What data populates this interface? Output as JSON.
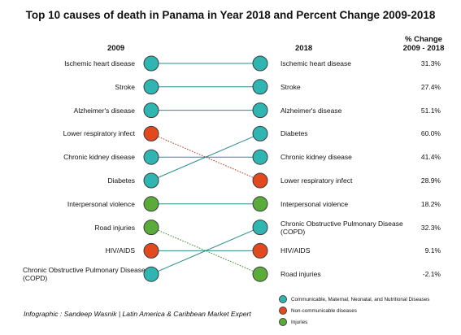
{
  "title": "Top 10 causes of death in Panama in Year 2018 and Percent Change 2009-2018",
  "headers": {
    "left": "2009",
    "right": "2018",
    "change_line1": "% Change",
    "change_line2": "2009 - 2018"
  },
  "colors": {
    "communicable": "#2fb5b2",
    "noncommunicable": "#e2491e",
    "injuries": "#5bab3a",
    "outline": "#3d3d3d"
  },
  "left_items": [
    {
      "label": "Ischemic heart disease",
      "category": "communicable"
    },
    {
      "label": "Stroke",
      "category": "communicable"
    },
    {
      "label": "Alzheimer's disease",
      "category": "communicable"
    },
    {
      "label": "Lower respiratory infect",
      "category": "noncommunicable"
    },
    {
      "label": "Chronic kidney disease",
      "category": "communicable"
    },
    {
      "label": "Diabetes",
      "category": "communicable"
    },
    {
      "label": "Interpersonal violence",
      "category": "injuries"
    },
    {
      "label": "Road injuries",
      "category": "injuries"
    },
    {
      "label": "HIV/AIDS",
      "category": "noncommunicable"
    },
    {
      "label": "Chronic Obstructive Pulmonary Disease",
      "label2": "(COPD)",
      "category": "communicable"
    }
  ],
  "right_items": [
    {
      "label": "Ischemic heart disease",
      "change": "31.3%",
      "category": "communicable"
    },
    {
      "label": "Stroke",
      "change": "27.4%",
      "category": "communicable"
    },
    {
      "label": "Alzheimer's disease",
      "change": "51.1%",
      "category": "communicable"
    },
    {
      "label": "Diabetes",
      "change": "60.0%",
      "category": "communicable"
    },
    {
      "label": "Chronic kidney disease",
      "change": "41.4%",
      "category": "communicable"
    },
    {
      "label": "Lower respiratory infect",
      "change": "28.9%",
      "category": "noncommunicable"
    },
    {
      "label": "Interpersonal violence",
      "change": "18.2%",
      "category": "injuries"
    },
    {
      "label": "Chronic Obstructive Pulmonary Disease",
      "label2": "(COPD)",
      "change": "32.3%",
      "category": "communicable"
    },
    {
      "label": "HIV/AIDS",
      "change": "9.1%",
      "category": "noncommunicable"
    },
    {
      "label": "Road injuries",
      "change": "-2.1%",
      "category": "injuries"
    }
  ],
  "connections": [
    {
      "from": 0,
      "to": 0,
      "style": "solid"
    },
    {
      "from": 1,
      "to": 1,
      "style": "solid"
    },
    {
      "from": 2,
      "to": 2,
      "style": "solid"
    },
    {
      "from": 3,
      "to": 5,
      "style": "dotted"
    },
    {
      "from": 4,
      "to": 4,
      "style": "solid"
    },
    {
      "from": 5,
      "to": 3,
      "style": "solid"
    },
    {
      "from": 6,
      "to": 6,
      "style": "solid"
    },
    {
      "from": 7,
      "to": 9,
      "style": "dotted"
    },
    {
      "from": 8,
      "to": 8,
      "style": "solid"
    },
    {
      "from": 9,
      "to": 7,
      "style": "solid"
    }
  ],
  "legend": [
    {
      "label": "Communicable, Maternal, Neonatal, and Nutritional Diseases",
      "category": "communicable"
    },
    {
      "label": "Non-communicable diseases",
      "category": "noncommunicable"
    },
    {
      "label": "Injuries",
      "category": "injuries"
    }
  ],
  "credit": "Infographic : Sandeep Wasnik | Latin America & Caribbean Market Expert"
}
